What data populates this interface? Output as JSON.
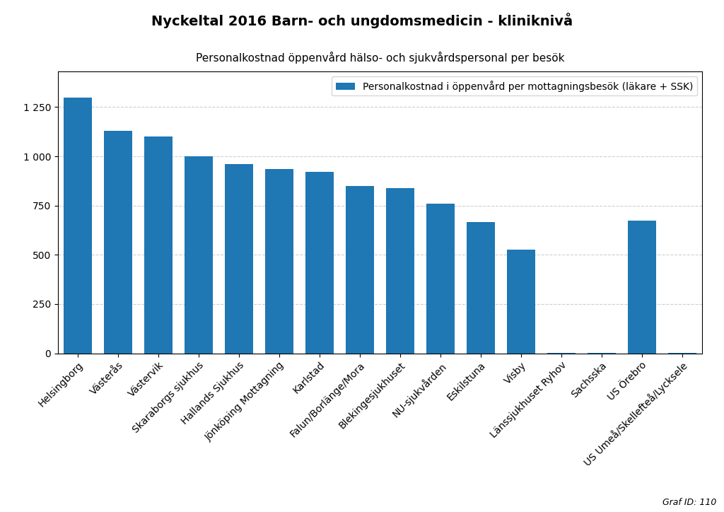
{
  "chart_data": {
    "type": "bar",
    "title": "Nyckeltal 2016 Barn- och ungdomsmedicin - kliniknivå",
    "subtitle": "Personalkostnad öppenvård hälso- och sjukvårdspersonal per besök",
    "categories": [
      "Helsingborg",
      "Västerås",
      "Västervik",
      "Skaraborgs sjukhus",
      "Hallands Sjukhus",
      "Jönköping Mottagning",
      "Karlstad",
      "Falun/Borlänge/Mora",
      "Blekingesjukhuset",
      "NU-sjukvården",
      "Eskilstuna",
      "Visby",
      "Länssjukhuset Ryhov",
      "Sachsska",
      "US Örebro",
      "US Umeå/Skellefteå/Lycksele"
    ],
    "series": [
      {
        "name": "Personalkostnad i öppenvård per mottagningsbesök (läkare + SSK)",
        "values": [
          1300,
          1130,
          1100,
          1000,
          960,
          935,
          920,
          848,
          840,
          760,
          668,
          525,
          2,
          2,
          675,
          2
        ]
      }
    ],
    "ylim": [
      0,
      1430
    ],
    "yticks": [
      0,
      250,
      500,
      750,
      {
        "value": 1000,
        "label": "1 000"
      },
      {
        "value": 1250,
        "label": "1 250"
      }
    ],
    "grid": true,
    "legend": "upper right",
    "annotations": [
      "Graf ID: 110"
    ]
  }
}
